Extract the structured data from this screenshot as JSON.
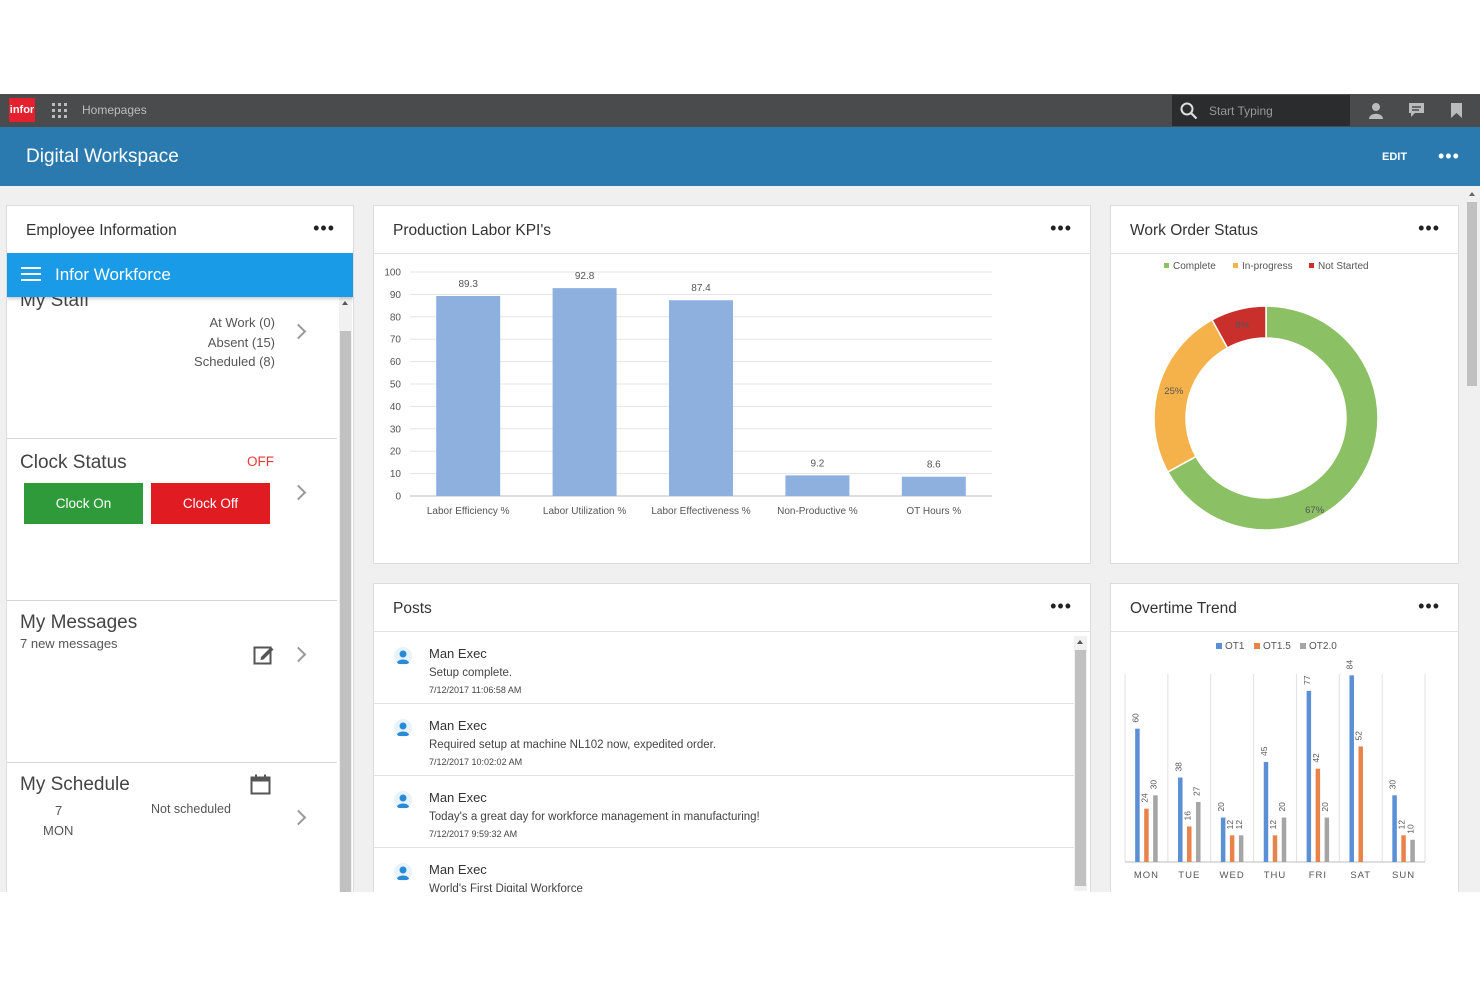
{
  "topbar": {
    "logo_text": "infor",
    "app_menu_label": "Homepages",
    "search_placeholder": "Start Typing"
  },
  "banner": {
    "title": "Digital Workspace",
    "edit_label": "EDIT",
    "more_label": "•••"
  },
  "employee_info": {
    "title": "Employee Information",
    "more_label": "•••",
    "workforce_label": "Infor Workforce",
    "my_staff": {
      "heading": "My Staff",
      "lines": [
        "At Work (0)",
        "Absent (15)",
        "Scheduled (8)"
      ]
    },
    "clock_status": {
      "heading": "Clock Status",
      "state": "OFF",
      "state_color": "#e53935",
      "clock_on_label": "Clock On",
      "clock_off_label": "Clock Off"
    },
    "my_messages": {
      "heading": "My Messages",
      "subtitle": "7 new messages"
    },
    "my_schedule": {
      "heading": "My Schedule",
      "day_number": "7",
      "day_name": "MON",
      "status": "Not scheduled"
    }
  },
  "kpi_card": {
    "title": "Production Labor KPI's",
    "more_label": "•••"
  },
  "work_order_card": {
    "title": "Work Order Status",
    "more_label": "•••"
  },
  "posts_card": {
    "title": "Posts",
    "more_label": "•••",
    "posts": [
      {
        "author": "Man Exec",
        "message": "Setup complete.",
        "timestamp": "7/12/2017 11:06:58 AM"
      },
      {
        "author": "Man Exec",
        "message": "Required setup at machine NL102 now, expedited order.",
        "timestamp": "7/12/2017 10:02:02 AM"
      },
      {
        "author": "Man Exec",
        "message": "Today's a great day for workforce management in manufacturing!",
        "timestamp": "7/12/2017 9:59:32 AM"
      },
      {
        "author": "Man Exec",
        "message": "World's First Digital Workforce",
        "timestamp": ""
      }
    ]
  },
  "overtime_card": {
    "title": "Overtime Trend",
    "more_label": "•••"
  },
  "chart_data": [
    {
      "type": "bar",
      "categories": [
        "Labor Efficiency %",
        "Labor Utilization %",
        "Labor Effectiveness %",
        "Non-Productive %",
        "OT Hours %"
      ],
      "values": [
        89.3,
        92.8,
        87.4,
        9.2,
        8.6
      ],
      "data_labels": [
        "89.3",
        "92.8",
        "87.4",
        "9.2",
        "8.6"
      ],
      "yticks": [
        "0",
        "10",
        "20",
        "30",
        "40",
        "50",
        "60",
        "70",
        "80",
        "90",
        "100"
      ],
      "ylim": [
        0,
        100
      ],
      "grid": true,
      "color": "#8db0df"
    },
    {
      "type": "pie",
      "donut": true,
      "legend": [
        "Complete",
        "In-progress",
        "Not Started"
      ],
      "legend_position": "top",
      "values": [
        67,
        25,
        8
      ],
      "data_labels": [
        "67%",
        "25%",
        "8%"
      ],
      "colors": [
        "#8cc064",
        "#f5b24a",
        "#c9302c"
      ]
    },
    {
      "type": "bar",
      "categories": [
        "MON",
        "TUE",
        "WED",
        "THU",
        "FRI",
        "SAT",
        "SUN"
      ],
      "legend_position": "top",
      "series": [
        {
          "name": "OT1",
          "values": [
            60,
            38,
            20,
            45,
            77,
            84,
            30
          ],
          "color": "#5b8fd6"
        },
        {
          "name": "OT1.5",
          "values": [
            24,
            16,
            12,
            12,
            42,
            52,
            12
          ],
          "color": "#e8844a"
        },
        {
          "name": "OT2.0",
          "values": [
            30,
            27,
            12,
            20,
            20,
            0,
            10
          ],
          "color": "#a5a5a5"
        }
      ],
      "ylim": [
        0,
        90
      ]
    }
  ]
}
